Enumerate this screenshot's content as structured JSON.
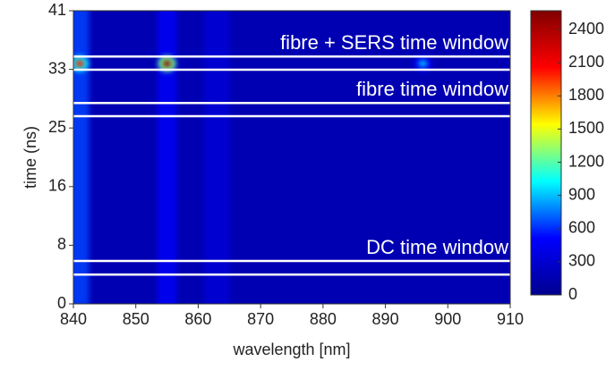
{
  "chart_data": {
    "type": "heatmap",
    "xlabel": "wavelength [nm]",
    "ylabel": "time (ns)",
    "xlim": [
      840,
      910
    ],
    "xticks": [
      840,
      850,
      860,
      870,
      880,
      890,
      900,
      910
    ],
    "ylim": [
      0,
      41
    ],
    "yticks": [
      0,
      {
        "value": 8.2,
        "label": "8"
      },
      {
        "value": 16.4,
        "label": "16"
      },
      {
        "value": 24.6,
        "label": "25"
      },
      {
        "value": 32.8,
        "label": "33"
      },
      41
    ],
    "clim": [
      0,
      2570
    ],
    "cticks": [
      0,
      300,
      600,
      900,
      1200,
      1500,
      1800,
      2100,
      2400
    ],
    "colormap": [
      "#00008f",
      "#0000ff",
      "#00ffff",
      "#ffff00",
      "#ff0000",
      "#800000"
    ],
    "background_level": 160,
    "stripes": [
      {
        "wavelength": 841,
        "width_nm": 3,
        "intensity": 650
      },
      {
        "wavelength": 855,
        "width_nm": 3,
        "intensity": 480
      },
      {
        "wavelength": 863,
        "width_nm": 4,
        "intensity": 330
      }
    ],
    "hotspots": [
      {
        "wavelength": 841,
        "time": 33.6,
        "intensity": 2000
      },
      {
        "wavelength": 855,
        "time": 33.6,
        "intensity": 2500
      },
      {
        "wavelength": 896,
        "time": 33.6,
        "intensity": 900
      }
    ],
    "windows": [
      {
        "label": "fibre + SERS time window",
        "range": [
          32.75,
          34.6
        ]
      },
      {
        "label": "fibre time window",
        "range": [
          26.25,
          28.1
        ]
      },
      {
        "label": "DC time window",
        "range": [
          4.1,
          6.0
        ]
      }
    ]
  }
}
